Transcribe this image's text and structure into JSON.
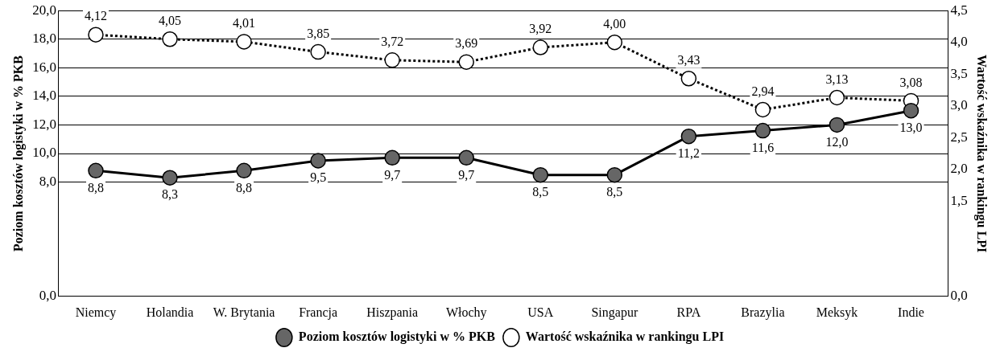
{
  "chart_data": {
    "type": "line",
    "categories": [
      "Niemcy",
      "Holandia",
      "W. Brytania",
      "Francja",
      "Hiszpania",
      "Włochy",
      "USA",
      "Singapur",
      "RPA",
      "Brazylia",
      "Meksyk",
      "Indie"
    ],
    "ylabel": "Poziom kosztów logistyki w % PKB",
    "y2label": "Wartość wskaźnika w rankingu LPI",
    "ylim": [
      0,
      20
    ],
    "yticks": [
      {
        "value": 0,
        "label": "0,0"
      },
      {
        "value": 8,
        "label": "8,0"
      },
      {
        "value": 10,
        "label": "10,0"
      },
      {
        "value": 12,
        "label": "12,0"
      },
      {
        "value": 14,
        "label": "14,0"
      },
      {
        "value": 16,
        "label": "16,0"
      },
      {
        "value": 18,
        "label": "18,0"
      },
      {
        "value": 20,
        "label": "20,0"
      }
    ],
    "y2lim": [
      0,
      4.5
    ],
    "y2ticks": [
      {
        "value": 0,
        "label": "0,0"
      },
      {
        "value": 1.5,
        "label": "1,5"
      },
      {
        "value": 2,
        "label": "2,0"
      },
      {
        "value": 2.5,
        "label": "2,5"
      },
      {
        "value": 3,
        "label": "3,0"
      },
      {
        "value": 3.5,
        "label": "3,5"
      },
      {
        "value": 4,
        "label": "4,0"
      },
      {
        "value": 4.5,
        "label": "4,5"
      }
    ],
    "grid": "y",
    "legend": "bottom",
    "marker": "circle",
    "series": [
      {
        "name": "Poziom kosztów logistyki w % PKB",
        "color": "#666666",
        "line_style": "solid",
        "values": [
          8.8,
          8.3,
          8.8,
          9.5,
          9.7,
          9.7,
          8.5,
          8.5,
          11.2,
          11.6,
          12.0,
          13.0
        ],
        "value_labels": [
          "8,8",
          "8,3",
          "8,8",
          "9,5",
          "9,7",
          "9,7",
          "8,5",
          "8,5",
          "11,2",
          "11,6",
          "12,0",
          "13,0"
        ]
      },
      {
        "name": "Wartość wskaźnika w rankingu LPI",
        "color": "#ffffff",
        "axis": "y2",
        "line_style": "dotted",
        "values": [
          4.12,
          4.05,
          4.01,
          3.85,
          3.72,
          3.69,
          3.92,
          4.0,
          3.43,
          2.94,
          3.13,
          3.08
        ],
        "value_labels": [
          "4,12",
          "4,05",
          "4,01",
          "3,85",
          "3,72",
          "3,69",
          "3,92",
          "4,00",
          "3,43",
          "2,94",
          "3,13",
          "3,08"
        ]
      }
    ]
  }
}
